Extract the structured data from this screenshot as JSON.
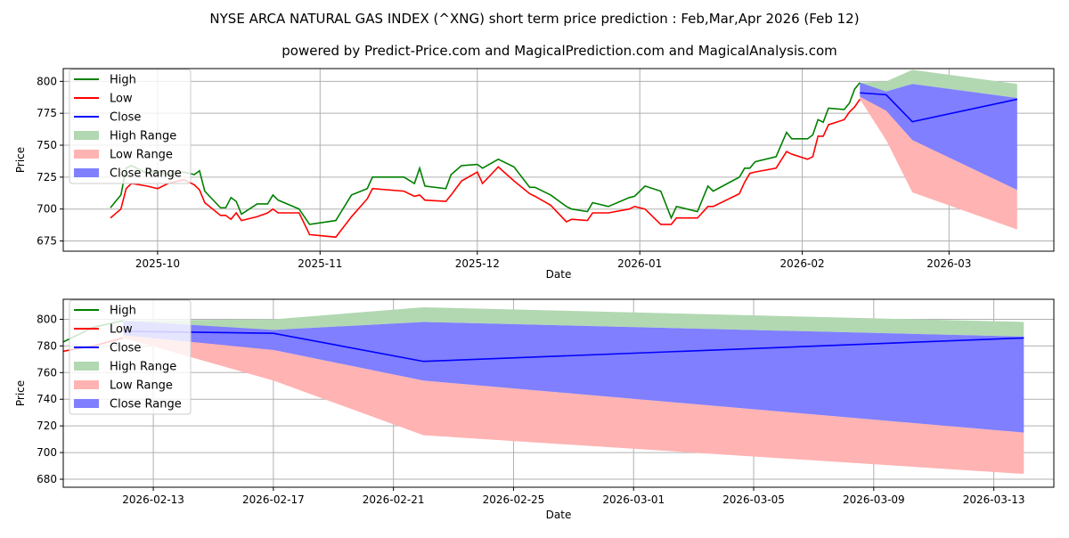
{
  "title": "NYSE ARCA NATURAL GAS INDEX (^XNG) short term price prediction : Feb,Mar,Apr 2026 (Feb 12)",
  "subtitle": "powered by Predict-Price.com and MagicalPrediction.com and MagicalAnalysis.com",
  "watermark": "Predict-Price.com",
  "colors": {
    "high": "#008000",
    "low": "#ff0000",
    "close": "#0000ff",
    "high_range": "#b2d8b2",
    "low_range": "#ffb3b3",
    "close_range": "#7f7fff"
  },
  "legend": [
    "High",
    "Low",
    "Close",
    "High Range",
    "Low Range",
    "Close Range"
  ],
  "chart_data": [
    {
      "type": "line",
      "xlabel": "Date",
      "ylabel": "Price",
      "xlim": [
        "2025-09-13",
        "2026-03-21"
      ],
      "ylim": [
        667,
        810
      ],
      "grid": true,
      "legend_position": "top-left",
      "xticks": [
        "2025-10",
        "2025-11",
        "2025-12",
        "2026-01",
        "2026-02",
        "2026-03"
      ],
      "xtick_dates": [
        "2025-10-01",
        "2025-11-01",
        "2025-12-01",
        "2026-01-01",
        "2026-02-01",
        "2026-03-01"
      ],
      "yticks": [
        675,
        700,
        725,
        750,
        775,
        800
      ],
      "history": {
        "dates": [
          "2025-09-22",
          "2025-09-24",
          "2025-09-25",
          "2025-09-26",
          "2025-09-29",
          "2025-10-01",
          "2025-10-03",
          "2025-10-06",
          "2025-10-08",
          "2025-10-09",
          "2025-10-10",
          "2025-10-13",
          "2025-10-14",
          "2025-10-15",
          "2025-10-16",
          "2025-10-17",
          "2025-10-20",
          "2025-10-22",
          "2025-10-23",
          "2025-10-24",
          "2025-10-28",
          "2025-10-30",
          "2025-11-04",
          "2025-11-07",
          "2025-11-10",
          "2025-11-11",
          "2025-11-17",
          "2025-11-19",
          "2025-11-20",
          "2025-11-21",
          "2025-11-25",
          "2025-11-26",
          "2025-11-28",
          "2025-12-01",
          "2025-12-02",
          "2025-12-05",
          "2025-12-08",
          "2025-12-11",
          "2025-12-12",
          "2025-12-15",
          "2025-12-18",
          "2025-12-19",
          "2025-12-22",
          "2025-12-23",
          "2025-12-26",
          "2025-12-30",
          "2025-12-31",
          "2026-01-02",
          "2026-01-05",
          "2026-01-07",
          "2026-01-08",
          "2026-01-12",
          "2026-01-14",
          "2026-01-15",
          "2026-01-20",
          "2026-01-21",
          "2026-01-22",
          "2026-01-23",
          "2026-01-27",
          "2026-01-29",
          "2026-01-30",
          "2026-02-02",
          "2026-02-03",
          "2026-02-04",
          "2026-02-05",
          "2026-02-06",
          "2026-02-09",
          "2026-02-10",
          "2026-02-11",
          "2026-02-12"
        ],
        "high": [
          701,
          711,
          732,
          734,
          728,
          730,
          727,
          729,
          727,
          730,
          714,
          701,
          701,
          709,
          706,
          696,
          704,
          704,
          711,
          707,
          700,
          688,
          691,
          711,
          716,
          725,
          725,
          720,
          732,
          718,
          716,
          727,
          734,
          735,
          732,
          739,
          733,
          717,
          717,
          711,
          702,
          700,
          698,
          705,
          702,
          709,
          710,
          718,
          714,
          693,
          702,
          698,
          718,
          714,
          725,
          732,
          732,
          737,
          741,
          760,
          755,
          755,
          758,
          770,
          768,
          779,
          778,
          783,
          794,
          799
        ],
        "low": [
          693,
          700,
          716,
          720,
          718,
          716,
          720,
          723,
          719,
          715,
          705,
          695,
          695,
          692,
          697,
          691,
          694,
          697,
          700,
          697,
          697,
          680,
          678,
          694,
          708,
          716,
          714,
          710,
          711,
          707,
          706,
          711,
          722,
          729,
          720,
          733,
          722,
          712,
          710,
          703,
          690,
          692,
          691,
          697,
          697,
          700,
          702,
          700,
          688,
          688,
          693,
          693,
          702,
          702,
          712,
          721,
          728,
          729,
          732,
          745,
          743,
          739,
          741,
          757,
          757,
          766,
          770,
          776,
          780,
          786
        ]
      },
      "forecast": {
        "dates": [
          "2026-02-12",
          "2026-02-17",
          "2026-02-22",
          "2026-03-14"
        ],
        "close": [
          791,
          789.5,
          768.4,
          786
        ],
        "high_range": {
          "upper": [
            799,
            800,
            809,
            798
          ],
          "lower": [
            790,
            792,
            798,
            787
          ]
        },
        "low_range": {
          "upper": [
            790,
            777,
            754,
            715
          ],
          "lower": [
            786,
            754,
            713,
            684
          ]
        },
        "close_range": {
          "upper": [
            799,
            792,
            798,
            787
          ],
          "lower": [
            788,
            777,
            754,
            715
          ]
        }
      }
    },
    {
      "type": "line",
      "xlabel": "Date",
      "ylabel": "Price",
      "xlim": [
        "2026-02-10",
        "2026-03-15"
      ],
      "ylim": [
        674,
        815
      ],
      "grid": true,
      "legend_position": "top-left",
      "xticks": [
        "2026-02-13",
        "2026-02-17",
        "2026-02-21",
        "2026-02-25",
        "2026-03-01",
        "2026-03-05",
        "2026-03-09",
        "2026-03-13"
      ],
      "xtick_dates": [
        "2026-02-13",
        "2026-02-17",
        "2026-02-21",
        "2026-02-25",
        "2026-03-01",
        "2026-03-05",
        "2026-03-09",
        "2026-03-13"
      ],
      "yticks": [
        680,
        700,
        720,
        740,
        760,
        780,
        800
      ]
    }
  ]
}
